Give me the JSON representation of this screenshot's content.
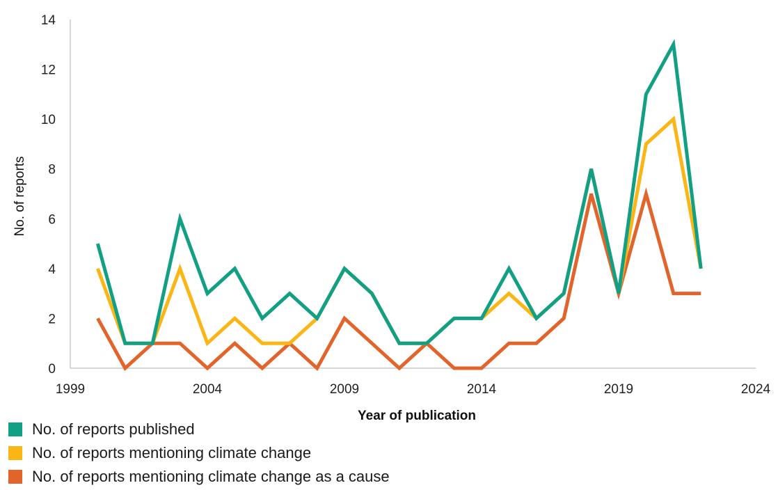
{
  "chart_data": {
    "type": "line",
    "xlabel": "Year of publication",
    "ylabel": "No. of reports",
    "xlim": [
      1999,
      2024
    ],
    "ylim": [
      0,
      14
    ],
    "xticks": [
      "1999",
      "2004",
      "2009",
      "2014",
      "2019",
      "2024"
    ],
    "yticks": [
      "0",
      "2",
      "4",
      "6",
      "8",
      "10",
      "12",
      "14"
    ],
    "grid": false,
    "legend_position": "bottom-left",
    "x": [
      2000,
      2001,
      2002,
      2003,
      2004,
      2005,
      2006,
      2007,
      2008,
      2009,
      2010,
      2011,
      2012,
      2013,
      2014,
      2015,
      2016,
      2017,
      2018,
      2019,
      2020,
      2021,
      2022
    ],
    "series": [
      {
        "name": "No. of reports published",
        "color": "#12a085",
        "values": [
          5,
          1,
          1,
          6,
          3,
          4,
          2,
          3,
          2,
          4,
          3,
          1,
          1,
          2,
          2,
          4,
          2,
          3,
          8,
          3,
          11,
          13,
          4
        ]
      },
      {
        "name": "No. of reports mentioning climate change",
        "color": "#fbb515",
        "values": [
          4,
          1,
          1,
          4,
          1,
          2,
          1,
          1,
          2,
          4,
          3,
          1,
          1,
          2,
          2,
          3,
          2,
          3,
          8,
          3,
          9,
          10,
          4
        ]
      },
      {
        "name": "No. of reports mentioning climate change as a cause",
        "color": "#e2642a",
        "values": [
          2,
          0,
          1,
          1,
          0,
          1,
          0,
          1,
          0,
          2,
          1,
          0,
          1,
          0,
          0,
          1,
          1,
          2,
          7,
          3,
          7,
          3,
          3
        ]
      }
    ]
  }
}
